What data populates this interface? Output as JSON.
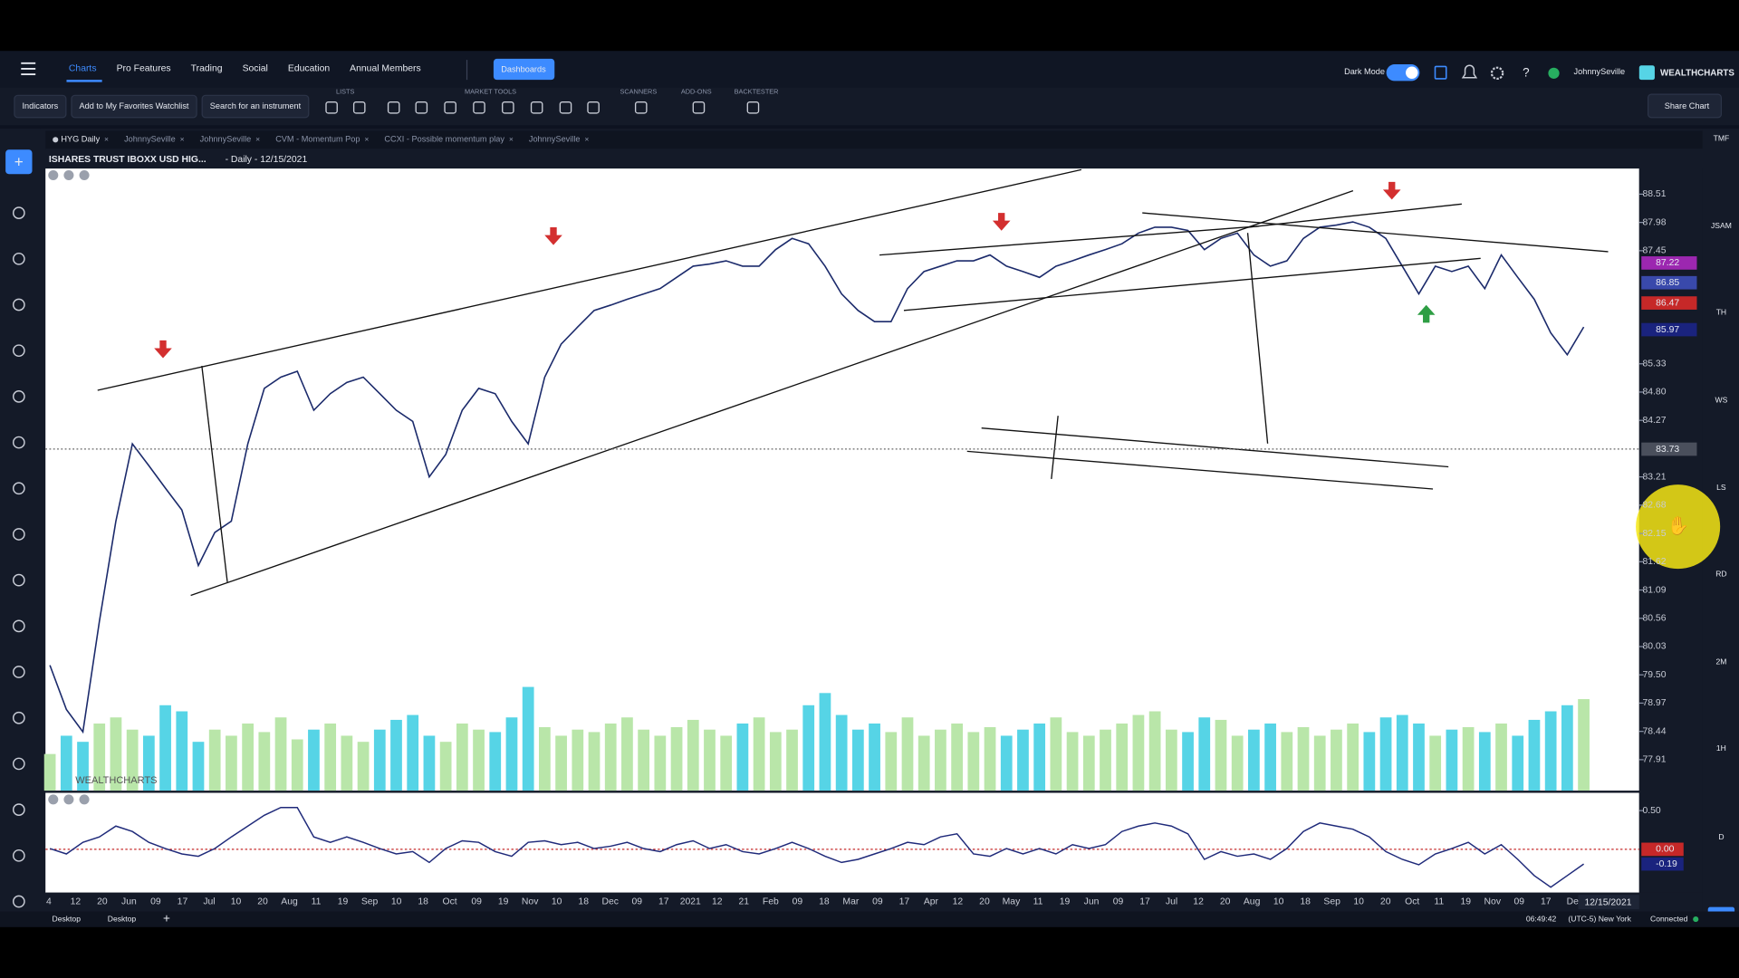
{
  "nav": {
    "items": [
      "Charts",
      "Pro Features",
      "Trading",
      "Social",
      "Education",
      "Annual Members"
    ],
    "dashboards": "Dashboards",
    "dark_mode": "Dark Mode",
    "user": "JohnnySeville",
    "brand": "WEALTHCHARTS"
  },
  "toolbar": {
    "buttons": [
      "Indicators",
      "Add to My Favorites Watchlist",
      "Search for an instrument"
    ],
    "groups": [
      "LISTS",
      "MARKET TOOLS",
      "SCANNERS",
      "ADD-ONS",
      "BACKTESTER"
    ],
    "share": "Share Chart"
  },
  "tabs": [
    "HYG Daily",
    "JohnnySeville",
    "JohnnySeville",
    "CVM - Momentum Pop",
    "CCXI - Possible momentum play",
    "JohnnySeville"
  ],
  "sidebar": [
    "TMF",
    "JSAM",
    "TH",
    "WS",
    "LS",
    "RD",
    "2M",
    "1H",
    "D"
  ],
  "chart_data": {
    "type": "line",
    "title": "ISHARES TRUST IBOXX USD HIG...",
    "subtitle": "- Daily - 12/15/2021",
    "watermark": "WEALTHCHARTS",
    "color": "#1b2a6b",
    "values": [
      79.68,
      78.85,
      78.43,
      80.5,
      82.38,
      83.83,
      83.42,
      83.0,
      82.59,
      81.55,
      82.17,
      82.38,
      83.83,
      84.87,
      85.08,
      85.19,
      84.46,
      84.77,
      84.98,
      85.08,
      84.77,
      84.46,
      84.25,
      83.21,
      83.63,
      84.46,
      84.87,
      84.77,
      84.25,
      83.83,
      85.08,
      85.7,
      86.02,
      86.33,
      86.43,
      86.54,
      86.64,
      86.74,
      86.95,
      87.16,
      87.2,
      87.26,
      87.16,
      87.16,
      87.47,
      87.68,
      87.58,
      87.16,
      86.64,
      86.33,
      86.12,
      86.12,
      86.74,
      87.06,
      87.16,
      87.26,
      87.26,
      87.37,
      87.16,
      87.06,
      86.95,
      87.16,
      87.26,
      87.37,
      87.47,
      87.58,
      87.78,
      87.89,
      87.89,
      87.83,
      87.47,
      87.68,
      87.78,
      87.37,
      87.16,
      87.26,
      87.68,
      87.89,
      87.93,
      87.99,
      87.89,
      87.68,
      87.16,
      86.64,
      87.16,
      87.06,
      87.16,
      86.74,
      87.37,
      86.95,
      86.54,
      85.91,
      85.5,
      86.02
    ],
    "ylim": [
      77.33,
      88.99
    ],
    "yticks": [
      88.51,
      87.98,
      {
        "value": 87.45,
        "label": "87.45"
      },
      85.33,
      {
        "value": 84.8,
        "label": "84.80"
      },
      84.27,
      83.21,
      82.68,
      82.15,
      81.62,
      81.09,
      80.56,
      80.03,
      {
        "value": 79.5,
        "label": "79.50"
      },
      78.97,
      78.44,
      77.91
    ],
    "price_tags": [
      {
        "value": 87.22,
        "color": "#9c27b0"
      },
      {
        "value": 86.85,
        "color": "#3949ab"
      },
      {
        "value": 86.47,
        "color": "#c62828"
      },
      {
        "value": 85.97,
        "color": "#1a237e"
      },
      {
        "value": 83.73,
        "color": "#4a4f5c"
      }
    ],
    "volume": [
      30,
      45,
      40,
      55,
      60,
      50,
      45,
      70,
      65,
      40,
      50,
      45,
      55,
      48,
      60,
      42,
      50,
      55,
      45,
      40,
      50,
      58,
      62,
      45,
      40,
      55,
      50,
      48,
      60,
      85,
      52,
      45,
      50,
      48,
      55,
      60,
      50,
      45,
      52,
      58,
      50,
      45,
      55,
      60,
      48,
      50,
      70,
      80,
      62,
      50,
      55,
      48,
      60,
      45,
      50,
      55,
      48,
      52,
      45,
      50,
      55,
      60,
      48,
      45,
      50,
      55,
      62,
      65,
      50,
      48,
      60,
      58,
      45,
      50,
      55,
      48,
      52,
      45,
      50,
      55,
      48,
      60,
      62,
      55,
      45,
      50,
      52,
      48,
      55,
      45,
      58,
      65,
      70,
      75
    ],
    "volume_lim": [
      0,
      100
    ],
    "volume_colors": {
      "up": "#b9e6a9",
      "down": "#56d4e6"
    },
    "oscillator": {
      "color": "#1f2a7a",
      "values": [
        0.01,
        -0.06,
        0.09,
        0.16,
        0.3,
        0.23,
        0.09,
        0.01,
        -0.06,
        -0.09,
        0.01,
        0.16,
        0.3,
        0.44,
        0.54,
        0.54,
        0.16,
        0.09,
        0.16,
        0.09,
        0.01,
        -0.06,
        -0.03,
        -0.17,
        0.01,
        0.11,
        0.09,
        -0.03,
        -0.09,
        0.09,
        0.11,
        0.06,
        0.09,
        0.01,
        0.04,
        0.09,
        0.01,
        -0.03,
        0.06,
        0.11,
        0.01,
        0.06,
        -0.03,
        -0.06,
        0.01,
        0.09,
        0.01,
        -0.09,
        -0.17,
        -0.13,
        -0.06,
        0.01,
        0.09,
        0.06,
        0.16,
        0.2,
        -0.06,
        -0.09,
        0.01,
        -0.06,
        0.01,
        -0.06,
        0.06,
        0.01,
        0.06,
        0.23,
        0.3,
        0.34,
        0.3,
        0.2,
        -0.13,
        -0.03,
        -0.09,
        -0.06,
        -0.13,
        0.01,
        0.23,
        0.34,
        0.3,
        0.26,
        0.16,
        -0.03,
        -0.13,
        -0.2,
        -0.06,
        0.01,
        0.09,
        -0.06,
        0.06,
        -0.13,
        -0.34,
        -0.49,
        -0.34,
        -0.19
      ],
      "ylim": [
        -0.56,
        0.73
      ],
      "yticks": [
        {
          "value": 0.5,
          "label": "0.50"
        }
      ],
      "tags": [
        {
          "value": 0,
          "label": "0.00",
          "color": "#c62828"
        },
        {
          "value": -0.19,
          "color": "#1a237e"
        }
      ]
    },
    "date_labels": [
      "4",
      "12",
      "20",
      "Jun",
      "09",
      "17",
      "Jul",
      "10",
      "20",
      "Aug",
      "11",
      "19",
      "Sep",
      "10",
      "18",
      "Oct",
      "09",
      "19",
      "Nov",
      "10",
      "18",
      "Dec",
      "09",
      "17",
      "2021",
      "12",
      "21",
      "Feb",
      "09",
      "18",
      "Mar",
      "09",
      "17",
      "Apr",
      "12",
      "20",
      "May",
      "11",
      "19",
      "Jun",
      "09",
      "17",
      "Jul",
      "12",
      "20",
      "Aug",
      "10",
      "18",
      "Sep",
      "10",
      "20",
      "Oct",
      "11",
      "19",
      "Nov",
      "09",
      "17",
      "De"
    ],
    "date_tag": "12/15/2021"
  },
  "footer": {
    "tabs": [
      "Desktop",
      "Desktop"
    ],
    "time": "06:49:42",
    "zone": "(UTC-5) New York",
    "status": "Connected"
  }
}
